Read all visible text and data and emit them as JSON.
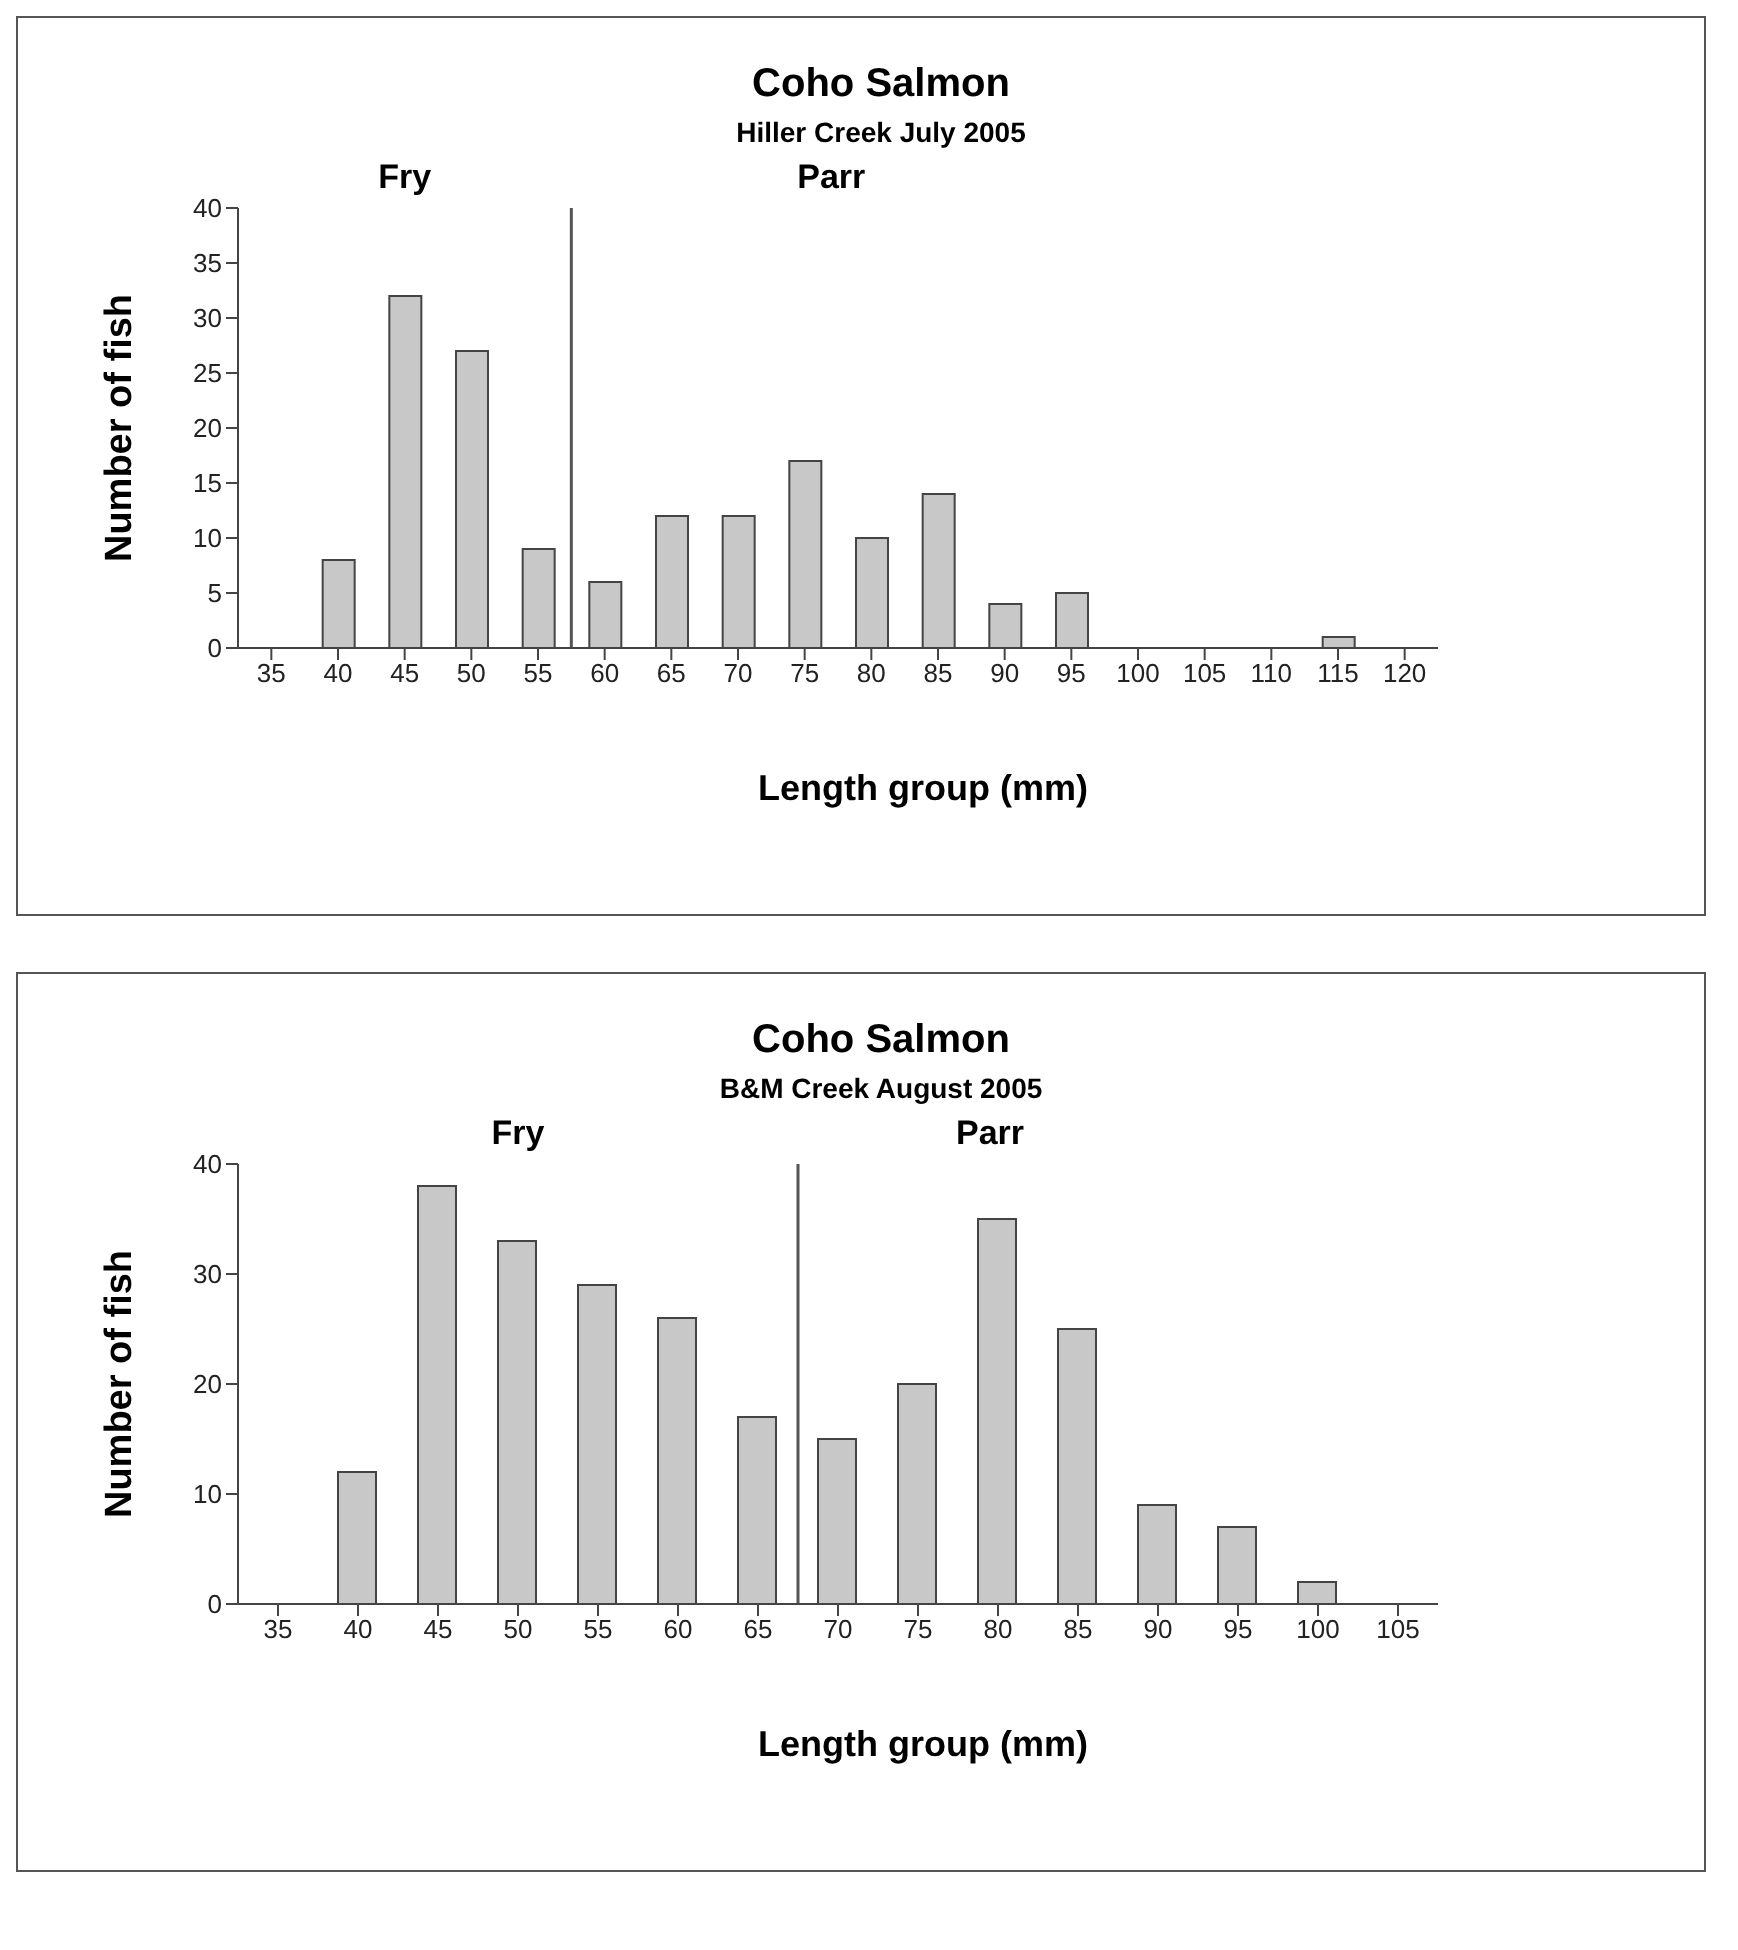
{
  "chart_data": [
    {
      "type": "bar",
      "title": "Coho Salmon",
      "subtitle": "Hiller Creek July 2005",
      "xlabel": "Length group (mm)",
      "ylabel": "Number of fish",
      "x": [
        35,
        40,
        45,
        50,
        55,
        60,
        65,
        70,
        75,
        80,
        85,
        90,
        95,
        100,
        105,
        110,
        115,
        120
      ],
      "values": [
        0,
        8,
        32,
        27,
        9,
        6,
        12,
        12,
        17,
        10,
        14,
        4,
        5,
        0,
        0,
        0,
        1,
        0
      ],
      "color": "#c8c8c8",
      "xlim": [
        32.5,
        122.5
      ],
      "xticks": [
        35,
        40,
        45,
        50,
        55,
        60,
        65,
        70,
        75,
        80,
        85,
        90,
        95,
        100,
        105,
        110,
        115,
        120
      ],
      "ylim": [
        0,
        40
      ],
      "yticks": [
        0,
        5,
        10,
        15,
        20,
        25,
        30,
        35,
        40
      ],
      "grid": false,
      "legend": false,
      "ref_lines": [
        {
          "axis": "x",
          "value": 57.5,
          "color": "#555555"
        }
      ],
      "annotations": [
        "Fry",
        "Parr"
      ]
    },
    {
      "type": "bar",
      "title": "Coho Salmon",
      "subtitle": "B&M Creek August 2005",
      "xlabel": "Length group (mm)",
      "ylabel": "Number of fish",
      "x": [
        35,
        40,
        45,
        50,
        55,
        60,
        65,
        70,
        75,
        80,
        85,
        90,
        95,
        100,
        105
      ],
      "values": [
        0,
        12,
        38,
        33,
        29,
        26,
        17,
        15,
        20,
        35,
        25,
        9,
        7,
        2,
        0
      ],
      "color": "#c8c8c8",
      "xlim": [
        32.5,
        107.5
      ],
      "xticks": [
        35,
        40,
        45,
        50,
        55,
        60,
        65,
        70,
        75,
        80,
        85,
        90,
        95,
        100,
        105
      ],
      "ylim": [
        0,
        40
      ],
      "yticks": [
        0,
        10,
        20,
        30,
        40
      ],
      "grid": false,
      "legend": false,
      "ref_lines": [
        {
          "axis": "x",
          "value": 67.5,
          "color": "#555555"
        }
      ],
      "annotations": [
        "Fry",
        "Parr"
      ]
    }
  ]
}
